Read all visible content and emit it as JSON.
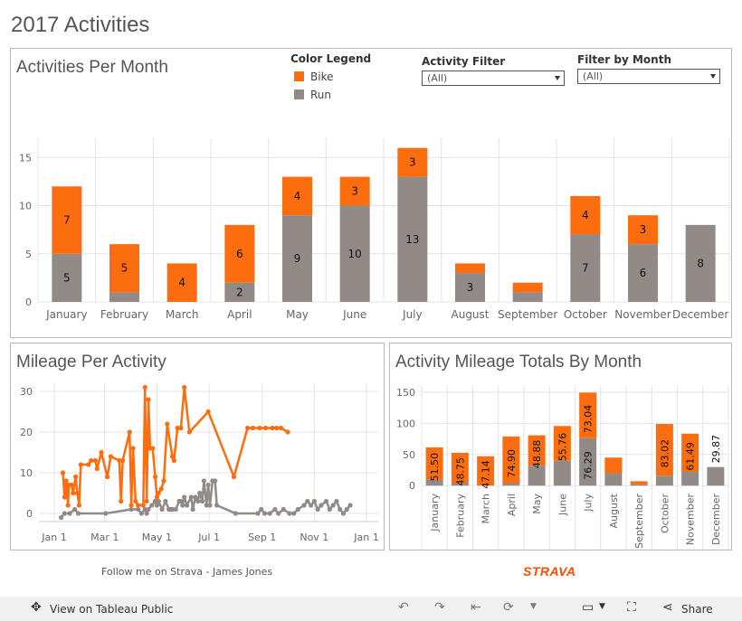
{
  "page_title": "2017 Activities",
  "panel1": {
    "title": "Activities Per Month",
    "legend": {
      "title": "Color Legend",
      "items": [
        {
          "label": "Bike",
          "color": "#fc6d0f"
        },
        {
          "label": "Run",
          "color": "#928a87"
        }
      ]
    },
    "filters": [
      {
        "label": "Activity Filter",
        "value": "(All)"
      },
      {
        "label": "Filter by Month",
        "value": "(All)"
      }
    ]
  },
  "panel2": {
    "title": "Mileage Per Activity"
  },
  "panel3": {
    "title": "Activity Mileage Totals By Month"
  },
  "footer": {
    "text": "Follow me on Strava - James Jones",
    "brand": "STRAVA"
  },
  "toolbar": {
    "view_label": "View on Tableau Public",
    "share_label": "Share"
  },
  "colors": {
    "bike": "#fc6d0f",
    "run": "#928a87"
  },
  "chart_data": [
    {
      "type": "bar",
      "title": "Activities Per Month",
      "stacked": true,
      "categories": [
        "January",
        "February",
        "March",
        "April",
        "May",
        "June",
        "July",
        "August",
        "September",
        "October",
        "November",
        "December"
      ],
      "series": [
        {
          "name": "Run",
          "values": [
            5,
            1,
            0,
            2,
            9,
            10,
            13,
            3,
            1,
            7,
            6,
            8
          ],
          "labels": [
            "5",
            "",
            "",
            "2",
            "9",
            "10",
            "13",
            "3",
            "",
            "7",
            "6",
            "8"
          ]
        },
        {
          "name": "Bike",
          "values": [
            7,
            5,
            4,
            6,
            4,
            3,
            3,
            1,
            1,
            4,
            3,
            0
          ],
          "labels": [
            "7",
            "5",
            "4",
            "6",
            "4",
            "3",
            "3",
            "",
            "",
            "4",
            "3",
            ""
          ]
        }
      ],
      "yticks": [
        0,
        5,
        10,
        15
      ],
      "ylim": [
        0,
        17
      ],
      "grid": true
    },
    {
      "type": "line",
      "title": "Mileage Per Activity",
      "xticks": [
        "Jan 1",
        "Mar 1",
        "May 1",
        "Jul 1",
        "Sep 1",
        "Nov 1",
        "Jan 1"
      ],
      "yticks": [
        0,
        10,
        20,
        30
      ],
      "xlim": [
        0,
        365
      ],
      "ylim": [
        -2,
        32
      ],
      "series": [
        {
          "name": "Bike",
          "points": [
            [
              10,
              10
            ],
            [
              12,
              4
            ],
            [
              14,
              8
            ],
            [
              16,
              2
            ],
            [
              17,
              7
            ],
            [
              20,
              7
            ],
            [
              22,
              5
            ],
            [
              25,
              9
            ],
            [
              27,
              5
            ],
            [
              29,
              2
            ],
            [
              31,
              12
            ],
            [
              40,
              12
            ],
            [
              43,
              13
            ],
            [
              48,
              13
            ],
            [
              50,
              11
            ],
            [
              55,
              15
            ],
            [
              62,
              9
            ],
            [
              66,
              14
            ],
            [
              76,
              13
            ],
            [
              78,
              3
            ],
            [
              80,
              13
            ],
            [
              88,
              20
            ],
            [
              90,
              2
            ],
            [
              92,
              16
            ],
            [
              95,
              3
            ],
            [
              98,
              2
            ],
            [
              104,
              2
            ],
            [
              106,
              31
            ],
            [
              108,
              3
            ],
            [
              110,
              28
            ],
            [
              112,
              16
            ],
            [
              115,
              16
            ],
            [
              118,
              9
            ],
            [
              120,
              4
            ],
            [
              122,
              5
            ],
            [
              125,
              6
            ],
            [
              128,
              8
            ],
            [
              132,
              22
            ],
            [
              138,
              14
            ],
            [
              140,
              13
            ],
            [
              144,
              21
            ],
            [
              148,
              21
            ],
            [
              152,
              31
            ],
            [
              158,
              20
            ],
            [
              180,
              25
            ],
            [
              210,
              9
            ],
            [
              226,
              21
            ],
            [
              232,
              21
            ],
            [
              240,
              21
            ],
            [
              247,
              21
            ],
            [
              255,
              21
            ],
            [
              260,
              21
            ],
            [
              265,
              21
            ],
            [
              273,
              20
            ]
          ]
        },
        {
          "name": "Run",
          "points": [
            [
              8,
              -1
            ],
            [
              12,
              0
            ],
            [
              18,
              0
            ],
            [
              24,
              1
            ],
            [
              28,
              0
            ],
            [
              60,
              0
            ],
            [
              90,
              1
            ],
            [
              98,
              1
            ],
            [
              102,
              0
            ],
            [
              106,
              1
            ],
            [
              108,
              0
            ],
            [
              110,
              1
            ],
            [
              114,
              2
            ],
            [
              118,
              3
            ],
            [
              120,
              2
            ],
            [
              122,
              3
            ],
            [
              126,
              1
            ],
            [
              130,
              3
            ],
            [
              134,
              1
            ],
            [
              136,
              1
            ],
            [
              138,
              1
            ],
            [
              142,
              1
            ],
            [
              146,
              3
            ],
            [
              148,
              3
            ],
            [
              150,
              2
            ],
            [
              152,
              4
            ],
            [
              155,
              2
            ],
            [
              160,
              4
            ],
            [
              162,
              1
            ],
            [
              165,
              4
            ],
            [
              168,
              3
            ],
            [
              170,
              5
            ],
            [
              173,
              3
            ],
            [
              175,
              8
            ],
            [
              178,
              2
            ],
            [
              180,
              7
            ],
            [
              182,
              2
            ],
            [
              185,
              8
            ],
            [
              188,
              8
            ],
            [
              190,
              2
            ],
            [
              212,
              0
            ],
            [
              238,
              0
            ],
            [
              242,
              1
            ],
            [
              246,
              0
            ],
            [
              252,
              0
            ],
            [
              258,
              1
            ],
            [
              262,
              0
            ],
            [
              268,
              1
            ],
            [
              275,
              0
            ],
            [
              280,
              0
            ],
            [
              285,
              1
            ],
            [
              292,
              2
            ],
            [
              296,
              3
            ],
            [
              300,
              2
            ],
            [
              304,
              3
            ],
            [
              308,
              1
            ],
            [
              312,
              2
            ],
            [
              318,
              3
            ],
            [
              322,
              1
            ],
            [
              326,
              2
            ],
            [
              330,
              3
            ],
            [
              334,
              1
            ],
            [
              338,
              0
            ],
            [
              342,
              1
            ],
            [
              346,
              2
            ]
          ]
        }
      ]
    },
    {
      "type": "bar",
      "title": "Activity Mileage Totals By Month",
      "stacked": true,
      "categories": [
        "January",
        "February",
        "March",
        "April",
        "May",
        "June",
        "July",
        "August",
        "September",
        "October",
        "November",
        "December"
      ],
      "series": [
        {
          "name": "Run",
          "values": [
            10,
            4,
            0,
            4,
            32,
            40,
            76.29,
            20,
            2,
            16,
            22,
            29.87
          ],
          "labels": [
            "",
            "",
            "",
            "",
            "",
            "",
            "76.29",
            "",
            "",
            "",
            "",
            "29.87"
          ]
        },
        {
          "name": "Bike",
          "values": [
            51.5,
            48.75,
            47.14,
            74.9,
            48.88,
            55.76,
            73.04,
            25,
            5,
            83.02,
            61.49,
            0
          ],
          "labels": [
            "51.50",
            "48.75",
            "47.14",
            "74.90",
            "48.88",
            "55.76",
            "73.04",
            "",
            "",
            "83.02",
            "61.49",
            ""
          ]
        }
      ],
      "yticks": [
        0,
        50,
        100,
        150
      ],
      "ylim": [
        -4,
        160
      ]
    }
  ]
}
